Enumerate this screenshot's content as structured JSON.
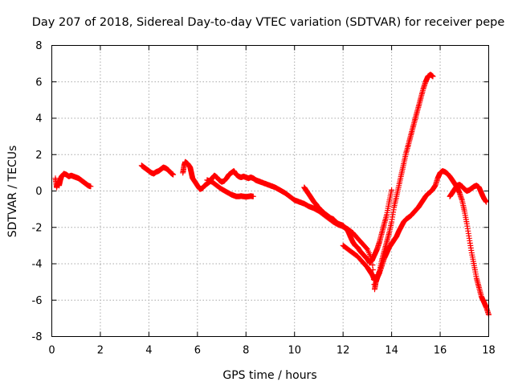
{
  "chart_data": {
    "type": "scatter",
    "title": "Day 207 of 2018, Sidereal Day-to-day VTEC variation (SDTVAR) for receiver pepe",
    "xlabel": "GPS time / hours",
    "ylabel": "SDTVAR / TECUs",
    "xlim": [
      0,
      18
    ],
    "ylim": [
      -8,
      8
    ],
    "xticks": [
      0,
      2,
      4,
      6,
      8,
      10,
      12,
      14,
      16,
      18
    ],
    "yticks": [
      -8,
      -6,
      -4,
      -2,
      0,
      2,
      4,
      6,
      8
    ],
    "grid": true,
    "marker": "+",
    "color": "#ff0000",
    "series": [
      {
        "name": "sdtvar",
        "segments": [
          {
            "x": [
              0.15,
              0.2,
              0.25,
              0.3,
              0.35,
              0.4,
              0.5,
              0.6,
              0.7,
              0.8,
              0.9,
              1.0,
              1.1,
              1.2,
              1.3,
              1.4,
              1.5,
              1.6
            ],
            "y": [
              0.7,
              0.2,
              0.5,
              0.3,
              0.6,
              0.8,
              0.95,
              0.9,
              0.8,
              0.85,
              0.8,
              0.75,
              0.7,
              0.6,
              0.5,
              0.4,
              0.3,
              0.25
            ]
          },
          {
            "x": [
              3.7,
              3.8,
              3.9,
              4.0,
              4.1,
              4.2,
              4.3,
              4.4,
              4.5,
              4.6,
              4.7,
              4.8,
              4.9,
              5.0
            ],
            "y": [
              1.4,
              1.3,
              1.2,
              1.1,
              1.0,
              0.95,
              1.05,
              1.1,
              1.2,
              1.3,
              1.25,
              1.15,
              1.0,
              0.9
            ]
          },
          {
            "x": [
              5.4,
              5.45,
              5.5,
              5.6,
              5.7,
              5.75,
              5.8,
              5.9,
              6.0,
              6.1,
              6.2,
              6.3,
              6.4,
              6.5,
              6.6,
              6.7,
              6.8,
              6.9,
              7.0,
              7.1,
              7.2,
              7.3,
              7.4,
              7.5,
              7.6,
              7.7,
              7.8,
              7.9,
              8.0,
              8.1,
              8.2,
              8.3,
              8.4,
              8.5,
              8.6,
              8.8,
              9.0,
              9.2,
              9.4,
              9.6,
              9.8,
              10.0,
              10.2,
              10.4,
              10.6,
              10.8,
              11.0,
              11.2,
              11.4,
              11.6,
              11.8,
              12.0,
              12.2,
              12.4,
              12.6,
              12.8,
              13.0,
              13.2,
              13.3,
              13.35,
              13.4,
              13.5,
              13.6,
              13.7,
              13.8,
              13.9,
              14.0,
              14.1,
              14.2,
              14.3,
              14.4,
              14.5,
              14.6,
              14.7,
              14.8,
              14.9,
              15.0,
              15.1,
              15.2,
              15.3,
              15.4,
              15.5,
              15.6,
              15.7
            ],
            "y": [
              1.0,
              1.4,
              1.6,
              1.5,
              1.3,
              1.0,
              0.7,
              0.5,
              0.3,
              0.1,
              0.15,
              0.3,
              0.4,
              0.5,
              0.7,
              0.85,
              0.75,
              0.6,
              0.5,
              0.55,
              0.7,
              0.9,
              1.0,
              1.1,
              0.9,
              0.8,
              0.75,
              0.8,
              0.75,
              0.7,
              0.75,
              0.7,
              0.6,
              0.55,
              0.5,
              0.4,
              0.3,
              0.2,
              0.05,
              -0.1,
              -0.3,
              -0.5,
              -0.6,
              -0.7,
              -0.85,
              -0.95,
              -1.1,
              -1.3,
              -1.5,
              -1.7,
              -1.85,
              -1.95,
              -2.1,
              -2.3,
              -2.6,
              -2.9,
              -3.2,
              -3.8,
              -5.4,
              -5.0,
              -4.8,
              -4.4,
              -3.8,
              -3.3,
              -2.8,
              -2.3,
              -1.7,
              -0.9,
              -0.3,
              0.3,
              0.9,
              1.5,
              2.1,
              2.6,
              3.1,
              3.6,
              4.1,
              4.6,
              5.1,
              5.6,
              6.0,
              6.3,
              6.4,
              6.3
            ]
          },
          {
            "x": [
              6.4,
              6.6,
              6.8,
              7.0,
              7.2,
              7.4,
              7.5,
              7.6,
              7.7,
              7.8,
              7.9,
              8.0,
              8.1,
              8.2,
              8.3
            ],
            "y": [
              0.6,
              0.5,
              0.3,
              0.1,
              -0.05,
              -0.2,
              -0.25,
              -0.3,
              -0.3,
              -0.28,
              -0.3,
              -0.32,
              -0.3,
              -0.28,
              -0.3
            ]
          },
          {
            "x": [
              10.4,
              10.5,
              10.6,
              10.7,
              10.8,
              10.9,
              11.0,
              11.1,
              11.2,
              11.3,
              11.4,
              11.5,
              11.6,
              11.7,
              11.8,
              11.9,
              12.0,
              12.1,
              12.2,
              12.3,
              12.4,
              12.5,
              12.6,
              12.7,
              12.8,
              12.9,
              13.0,
              13.1,
              13.2,
              13.3,
              13.4,
              13.5,
              13.6,
              13.7,
              13.8,
              13.9,
              14.0
            ],
            "y": [
              0.2,
              0.0,
              -0.2,
              -0.4,
              -0.6,
              -0.75,
              -0.95,
              -1.05,
              -1.2,
              -1.3,
              -1.4,
              -1.5,
              -1.55,
              -1.7,
              -1.8,
              -1.85,
              -1.9,
              -2.05,
              -2.2,
              -2.5,
              -2.8,
              -3.0,
              -3.1,
              -3.3,
              -3.45,
              -3.6,
              -3.75,
              -3.95,
              -3.8,
              -3.5,
              -3.2,
              -2.8,
              -2.3,
              -1.8,
              -1.3,
              -0.6,
              0.05
            ]
          },
          {
            "x": [
              12.0,
              12.2,
              12.4,
              12.6,
              12.8,
              13.0,
              13.1,
              13.2,
              13.3,
              13.4,
              13.5,
              13.6,
              13.7,
              13.8,
              13.9,
              14.0,
              14.1,
              14.2,
              14.3,
              14.4,
              14.5,
              14.6,
              14.7,
              14.8,
              14.9,
              15.0,
              15.1,
              15.2,
              15.3,
              15.4,
              15.5,
              15.6,
              15.7,
              15.8,
              15.9,
              16.0,
              16.1,
              16.2,
              16.3,
              16.4,
              16.5,
              16.6,
              16.7,
              16.8,
              16.9,
              17.0,
              17.1,
              17.2,
              17.3,
              17.4,
              17.5,
              17.6,
              17.7,
              17.8,
              17.9,
              18.0
            ],
            "y": [
              -3.0,
              -3.2,
              -3.4,
              -3.6,
              -3.9,
              -4.2,
              -4.4,
              -4.6,
              -4.9,
              -4.8,
              -4.5,
              -4.1,
              -3.7,
              -3.4,
              -3.1,
              -2.9,
              -2.7,
              -2.5,
              -2.2,
              -1.95,
              -1.7,
              -1.55,
              -1.45,
              -1.35,
              -1.2,
              -1.05,
              -0.9,
              -0.7,
              -0.5,
              -0.3,
              -0.15,
              -0.05,
              0.1,
              0.3,
              0.7,
              1.0,
              1.1,
              1.05,
              0.95,
              0.8,
              0.6,
              0.4,
              0.2,
              -0.1,
              -0.5,
              -1.1,
              -1.8,
              -2.6,
              -3.4,
              -4.1,
              -4.8,
              -5.3,
              -5.8,
              -6.1,
              -6.4,
              -6.8
            ]
          },
          {
            "x": [
              16.4,
              16.5,
              16.6,
              16.7,
              16.8,
              16.9,
              17.0,
              17.1,
              17.2,
              17.3,
              17.4,
              17.5,
              17.6,
              17.7,
              17.8,
              17.9
            ],
            "y": [
              -0.3,
              -0.1,
              0.1,
              0.3,
              0.35,
              0.25,
              0.1,
              0.0,
              0.05,
              0.15,
              0.25,
              0.3,
              0.2,
              -0.1,
              -0.4,
              -0.6
            ]
          }
        ]
      }
    ]
  }
}
